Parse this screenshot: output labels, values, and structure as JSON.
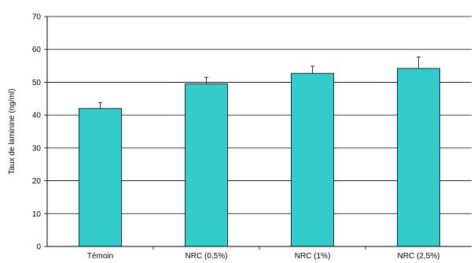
{
  "chart_data": {
    "type": "bar",
    "categories": [
      "Témoin",
      "NRC (0,5%)",
      "NRC (1%)",
      "NRC (2,5%)"
    ],
    "values": [
      42,
      49.5,
      52.7,
      54.2
    ],
    "error_plus": [
      1.8,
      2.0,
      2.2,
      3.5
    ],
    "title": "",
    "xlabel": "",
    "ylabel": "Taux de laminine (ng/ml)",
    "ylim": [
      0,
      70
    ],
    "yticks": [
      "0",
      "10",
      "20",
      "30",
      "40",
      "50",
      "60",
      "70"
    ],
    "grid": true,
    "bar_color": "#33CCCC",
    "bar_stroke": "#000000"
  }
}
